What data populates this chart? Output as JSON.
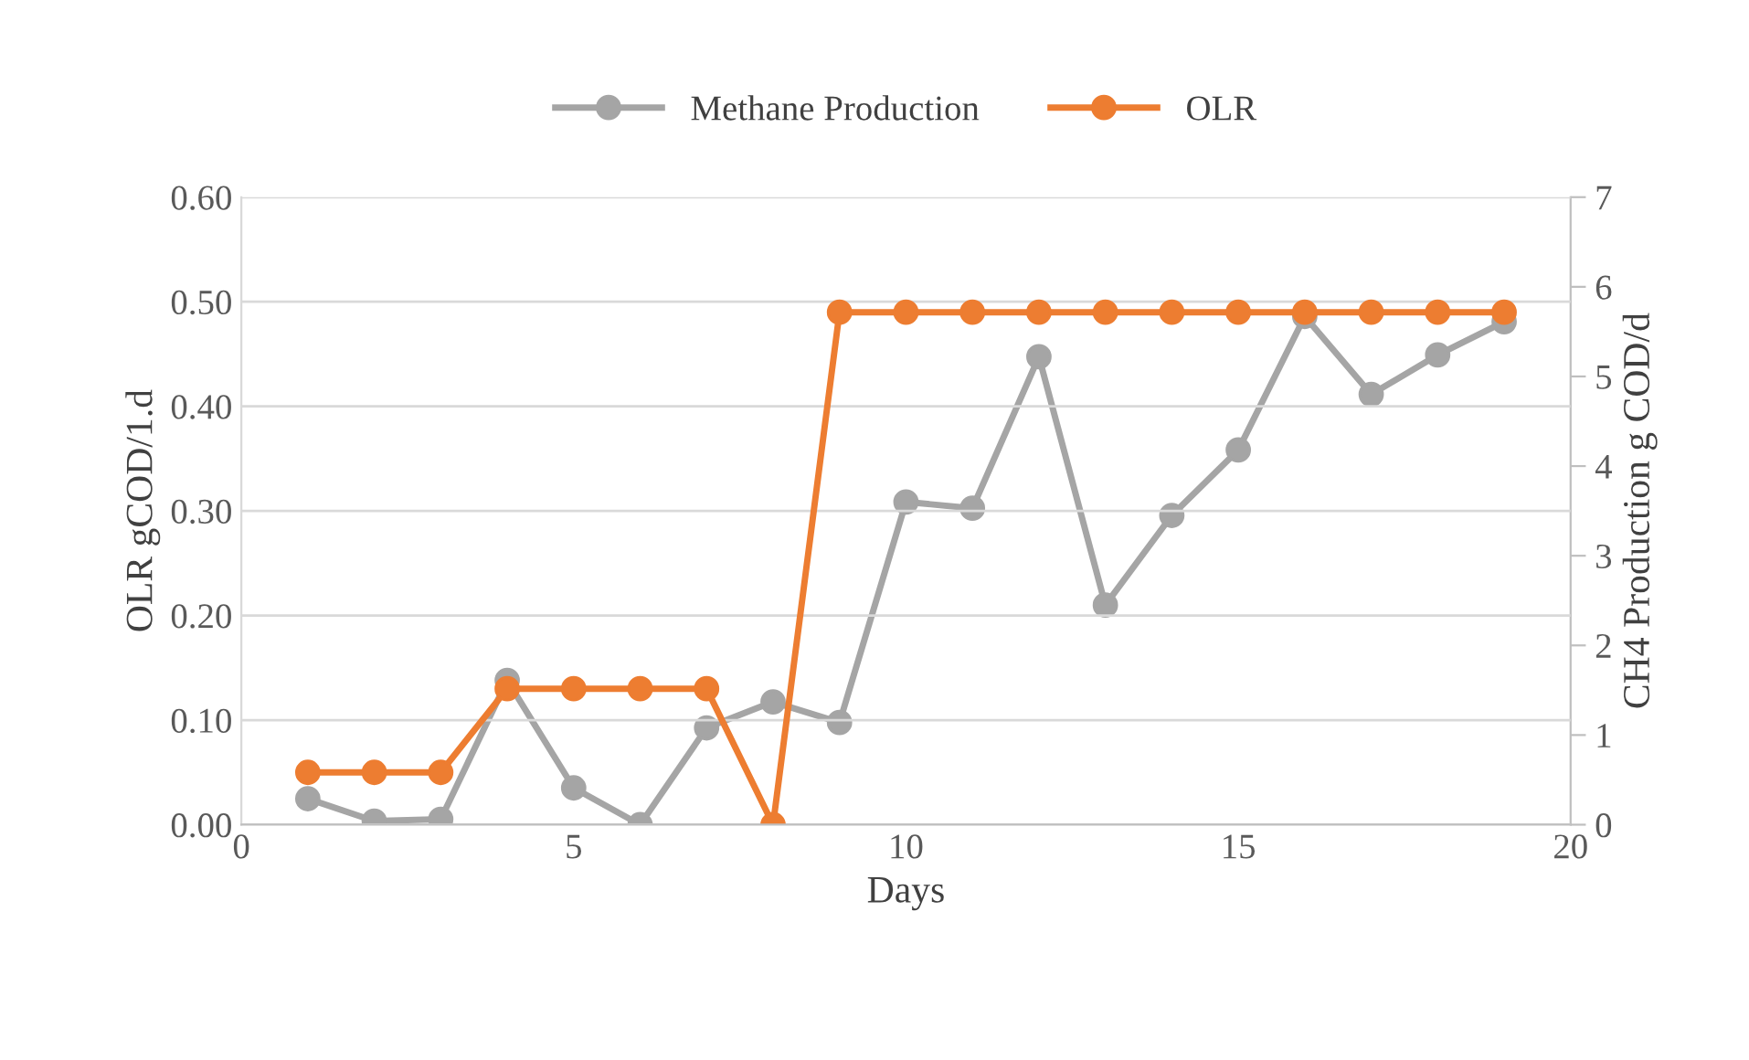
{
  "chart_data": {
    "type": "line",
    "xlabel": "Days",
    "ylabel": "OLR gCOD/1.d",
    "y2label": "CH4 Production g COD/d",
    "x": [
      1,
      2,
      3,
      4,
      5,
      6,
      7,
      8,
      9,
      10,
      11,
      12,
      13,
      14,
      15,
      16,
      17,
      18,
      19
    ],
    "series": [
      {
        "name": "Methane Production",
        "color": "#a5a5a5",
        "axis": "y2",
        "values": [
          0.29,
          0.04,
          0.06,
          1.61,
          0.41,
          0,
          1.08,
          1.37,
          1.14,
          3.6,
          3.53,
          5.22,
          2.45,
          3.45,
          4.18,
          5.67,
          4.8,
          5.24,
          5.61
        ]
      },
      {
        "name": "OLR",
        "color": "#ed7d31",
        "values": [
          0.05,
          0.05,
          0.05,
          0.13,
          0.13,
          0.13,
          0.13,
          0,
          0.49,
          0.49,
          0.49,
          0.49,
          0.49,
          0.49,
          0.49,
          0.49,
          0.49,
          0.49,
          0.49
        ]
      }
    ],
    "xlim": [
      0,
      20
    ],
    "xticks": [
      0,
      5,
      10,
      15,
      20
    ],
    "ylim": [
      0,
      0.6
    ],
    "yticks": [
      {
        "value": 0,
        "label": "0.00"
      },
      {
        "value": 0.1,
        "label": "0.10"
      },
      {
        "value": 0.2,
        "label": "0.20"
      },
      {
        "value": 0.3,
        "label": "0.30"
      },
      {
        "value": 0.4,
        "label": "0.40"
      },
      {
        "value": 0.5,
        "label": "0.50"
      },
      {
        "value": 0.6,
        "label": "0.60"
      }
    ],
    "y2lim": [
      0,
      7
    ],
    "y2ticks": [
      0,
      1,
      2,
      3,
      4,
      5,
      6,
      7
    ],
    "grid": "y",
    "legend": "top",
    "marker": "circle",
    "line_style": "solid"
  }
}
